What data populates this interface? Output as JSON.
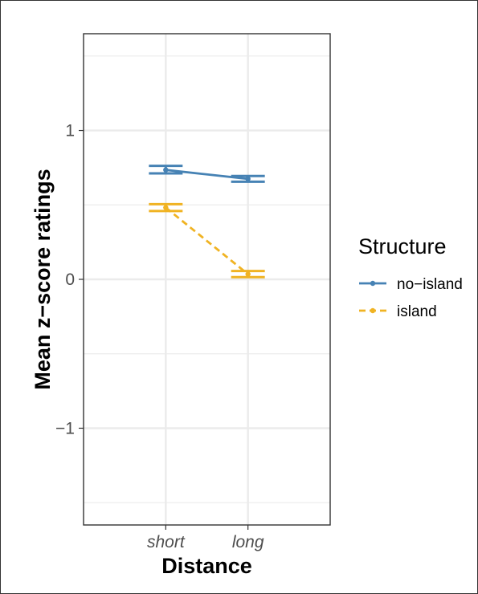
{
  "chart_data": {
    "type": "line",
    "xlabel": "Distance",
    "ylabel": "Mean z−score ratings",
    "categories": [
      "short",
      "long"
    ],
    "ylim": [
      -1.65,
      1.65
    ],
    "yticks": [
      {
        "value": 1,
        "label": "1"
      },
      {
        "value": 0,
        "label": "0"
      },
      {
        "value": -1,
        "label": "−1"
      }
    ],
    "grid": true,
    "legend": {
      "title": "Structure",
      "position": "right"
    },
    "series": [
      {
        "name": "no−island",
        "color": "#4682B4",
        "dash": "solid",
        "values": [
          0.735,
          0.675
        ],
        "errors": [
          [
            0.712,
            0.762
          ],
          [
            0.656,
            0.694
          ]
        ]
      },
      {
        "name": "island",
        "color": "#F0B323",
        "dash": "dashed",
        "values": [
          0.482,
          0.035
        ],
        "errors": [
          [
            0.459,
            0.505
          ],
          [
            0.015,
            0.056
          ]
        ]
      }
    ]
  }
}
